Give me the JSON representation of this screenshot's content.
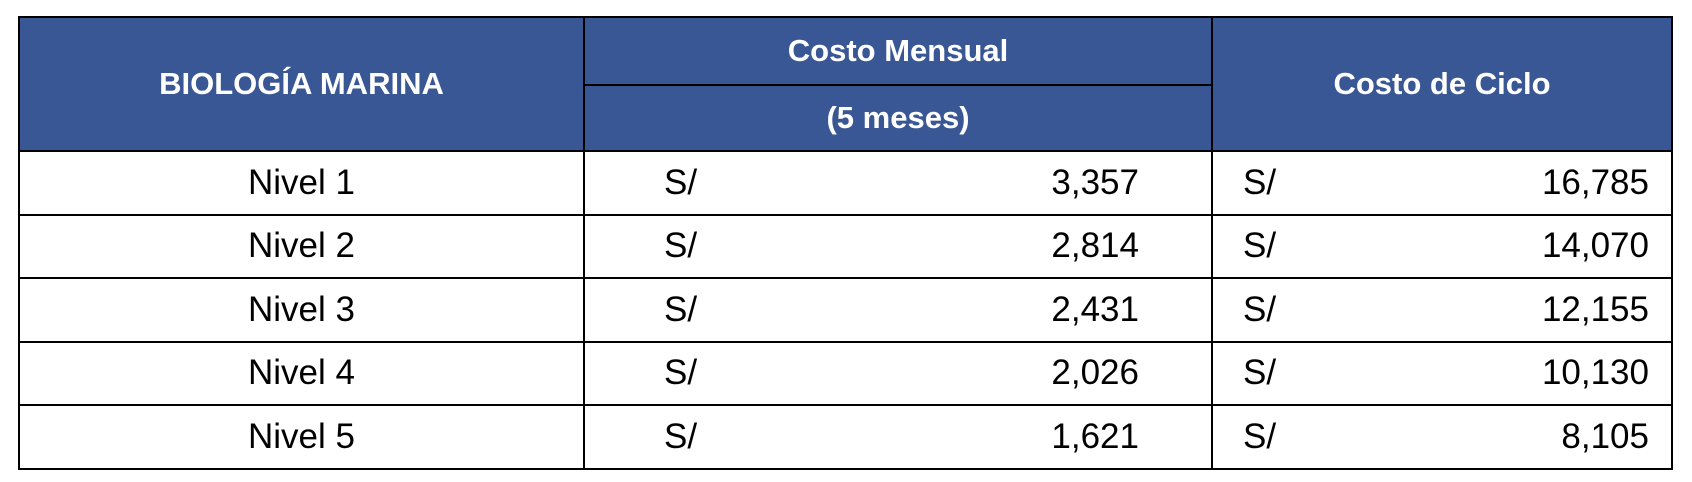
{
  "table": {
    "header": {
      "subject": "BIOLOGÍA MARINA",
      "monthly": "Costo Mensual",
      "monthly_note": "(5 meses)",
      "cycle": "Costo de Ciclo"
    },
    "rows": [
      {
        "label": "Nivel 1",
        "monthly_currency": "S/",
        "monthly": "3,357",
        "cycle_currency": "S/",
        "cycle": "16,785"
      },
      {
        "label": "Nivel 2",
        "monthly_currency": "S/",
        "monthly": "2,814",
        "cycle_currency": "S/",
        "cycle": "14,070"
      },
      {
        "label": "Nivel 3",
        "monthly_currency": "S/",
        "monthly": "2,431",
        "cycle_currency": "S/",
        "cycle": "12,155"
      },
      {
        "label": "Nivel 4",
        "monthly_currency": "S/",
        "monthly": "2,026",
        "cycle_currency": "S/",
        "cycle": "10,130"
      },
      {
        "label": "Nivel 5",
        "monthly_currency": "S/",
        "monthly": "1,621",
        "cycle_currency": "S/",
        "cycle": "8,105"
      }
    ]
  }
}
